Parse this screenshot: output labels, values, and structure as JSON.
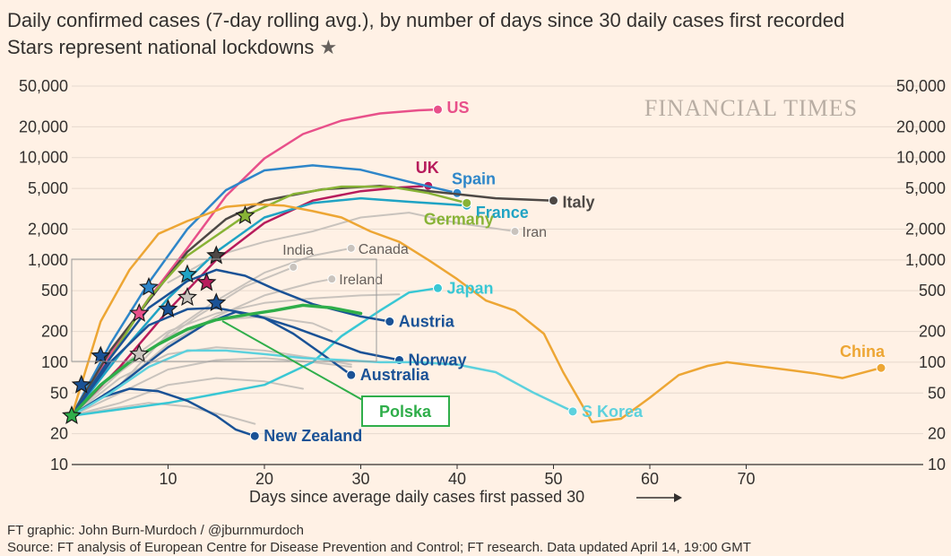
{
  "title": "Daily confirmed cases (7-day rolling avg.), by number of days since 30 daily cases first recorded",
  "subtitle": "Stars represent national lockdowns",
  "watermark": "FINANCIAL TIMES",
  "footer_credit": "FT graphic: John Burn-Murdoch / @jburnmurdoch",
  "footer_source": "Source: FT analysis of European Centre for Disease Prevention and Control; FT research. Data updated April 14, 19:00 GMT",
  "annotation_box": "Polska",
  "chart_data": {
    "type": "line",
    "xlabel": "Days since average daily cases first passed 30",
    "ylabel": "",
    "yscale": "log",
    "xlim": [
      0,
      85
    ],
    "ylim": [
      10,
      50000
    ],
    "x_ticks": [
      10,
      20,
      30,
      40,
      50,
      60,
      70
    ],
    "y_ticks": [
      10,
      20,
      50,
      100,
      200,
      500,
      1000,
      2000,
      5000,
      10000,
      20000,
      50000
    ],
    "y_tick_labels": [
      "10",
      "20",
      "50",
      "100",
      "200",
      "500",
      "1,000",
      "2,000",
      "5,000",
      "10,000",
      "20,000",
      "50,000"
    ],
    "grid": true,
    "colors": {
      "background": "#fff1e5",
      "grid": "#e6d9ce",
      "US": "#e8508a",
      "UK": "#b71c5c",
      "Spain": "#2e86c9",
      "France": "#1fa3c4",
      "Italy": "#4d4845",
      "Germany": "#88b336",
      "Japan": "#39c7d4",
      "Austria": "#1a5296",
      "Norway": "#1a5296",
      "Australia": "#1a5296",
      "New Zealand": "#1a5296",
      "S Korea": "#5dd1dd",
      "China": "#eda634",
      "Polska": "#2fae4a",
      "other": "#c9c3bd",
      "star": "#1a5296"
    },
    "series": [
      {
        "name": "US",
        "x": [
          0,
          4,
          8,
          12,
          16,
          20,
          24,
          28,
          32,
          36,
          38
        ],
        "y": [
          30,
          120,
          420,
          1300,
          4200,
          9800,
          17000,
          23000,
          27000,
          29000,
          29500
        ]
      },
      {
        "name": "UK",
        "x": [
          0,
          5,
          10,
          15,
          20,
          25,
          30,
          34,
          37
        ],
        "y": [
          30,
          90,
          320,
          1000,
          2300,
          3800,
          4700,
          5100,
          5300
        ]
      },
      {
        "name": "Spain",
        "x": [
          0,
          4,
          8,
          12,
          16,
          20,
          25,
          30,
          35,
          40
        ],
        "y": [
          30,
          150,
          600,
          2000,
          4800,
          7500,
          8400,
          7600,
          5800,
          4500
        ]
      },
      {
        "name": "France",
        "x": [
          0,
          5,
          10,
          15,
          20,
          25,
          30,
          35,
          41
        ],
        "y": [
          30,
          120,
          420,
          1200,
          2600,
          3600,
          4000,
          3700,
          3400
        ]
      },
      {
        "name": "Italy",
        "x": [
          0,
          4,
          8,
          12,
          16,
          20,
          26,
          32,
          38,
          44,
          50
        ],
        "y": [
          30,
          130,
          400,
          1200,
          2500,
          3800,
          4900,
          5300,
          4600,
          4000,
          3800
        ]
      },
      {
        "name": "Germany",
        "x": [
          0,
          4,
          8,
          12,
          18,
          23,
          28,
          33,
          37,
          41
        ],
        "y": [
          30,
          110,
          420,
          1100,
          2700,
          4400,
          5200,
          5200,
          4500,
          3600
        ]
      },
      {
        "name": "Iran",
        "x": [
          10,
          15,
          20,
          25,
          30,
          35,
          40,
          46
        ],
        "y": [
          600,
          1100,
          1500,
          1900,
          2600,
          2900,
          2300,
          1900
        ]
      },
      {
        "name": "Canada",
        "x": [
          5,
          10,
          15,
          20,
          25,
          29
        ],
        "y": [
          60,
          190,
          400,
          750,
          1100,
          1300
        ]
      },
      {
        "name": "India",
        "x": [
          8,
          13,
          18,
          23
        ],
        "y": [
          130,
          280,
          550,
          850
        ]
      },
      {
        "name": "Ireland",
        "x": [
          5,
          10,
          15,
          20,
          25,
          27
        ],
        "y": [
          60,
          150,
          280,
          450,
          600,
          650
        ]
      },
      {
        "name": "Japan",
        "x": [
          0,
          10,
          20,
          25,
          28,
          32,
          35,
          38
        ],
        "y": [
          30,
          40,
          60,
          100,
          180,
          320,
          480,
          530
        ]
      },
      {
        "name": "Austria",
        "x": [
          0,
          4,
          8,
          12,
          15,
          18,
          21,
          25,
          30,
          33
        ],
        "y": [
          30,
          110,
          340,
          620,
          800,
          700,
          520,
          370,
          280,
          250
        ]
      },
      {
        "name": "Norway",
        "x": [
          0,
          4,
          8,
          12,
          15,
          19,
          23,
          27,
          30,
          34
        ],
        "y": [
          30,
          100,
          230,
          330,
          340,
          290,
          220,
          160,
          125,
          105
        ]
      },
      {
        "name": "Australia",
        "x": [
          0,
          5,
          10,
          14,
          17,
          20,
          23,
          26,
          29
        ],
        "y": [
          30,
          60,
          140,
          240,
          310,
          270,
          190,
          120,
          75
        ]
      },
      {
        "name": "New Zealand",
        "x": [
          0,
          3,
          6,
          9,
          12,
          15,
          17,
          19
        ],
        "y": [
          30,
          45,
          55,
          52,
          42,
          30,
          22,
          19
        ]
      },
      {
        "name": "S Korea",
        "x": [
          0,
          4,
          8,
          12,
          16,
          20,
          24,
          28,
          32,
          36,
          40,
          44,
          48,
          52
        ],
        "y": [
          30,
          50,
          90,
          130,
          130,
          120,
          110,
          105,
          100,
          100,
          95,
          80,
          50,
          33
        ]
      },
      {
        "name": "China",
        "x": [
          0,
          3,
          6,
          9,
          12,
          14,
          16,
          19,
          22,
          25,
          28,
          31,
          34,
          37,
          40,
          43,
          46,
          49,
          51,
          54,
          57,
          60,
          63,
          66,
          68,
          71,
          74,
          77,
          80,
          84
        ],
        "y": [
          30,
          250,
          800,
          1800,
          2400,
          2800,
          3300,
          3500,
          3400,
          3000,
          2600,
          1900,
          1500,
          1000,
          650,
          400,
          320,
          190,
          80,
          26,
          28,
          45,
          75,
          92,
          100,
          92,
          85,
          78,
          70,
          88
        ]
      },
      {
        "name": "Polska",
        "x": [
          0,
          3,
          6,
          9,
          12,
          15,
          18,
          21,
          24,
          27,
          30
        ],
        "y": [
          30,
          60,
          100,
          150,
          210,
          260,
          290,
          320,
          360,
          340,
          300
        ]
      },
      {
        "name": "",
        "x": [
          0,
          5,
          10,
          15,
          20,
          25,
          30,
          34
        ],
        "y": [
          30,
          90,
          200,
          300,
          380,
          420,
          450,
          460
        ]
      },
      {
        "name": "",
        "x": [
          0,
          5,
          10,
          15,
          20,
          25,
          29
        ],
        "y": [
          30,
          70,
          120,
          140,
          130,
          110,
          95
        ]
      },
      {
        "name": "",
        "x": [
          0,
          5,
          10,
          15,
          20,
          25,
          29
        ],
        "y": [
          30,
          50,
          85,
          105,
          110,
          100,
          90
        ]
      },
      {
        "name": "",
        "x": [
          0,
          5,
          10,
          15,
          20,
          24
        ],
        "y": [
          30,
          40,
          60,
          70,
          65,
          55
        ]
      },
      {
        "name": "",
        "x": [
          0,
          4,
          8,
          12,
          16,
          19
        ],
        "y": [
          30,
          35,
          40,
          37,
          30,
          25
        ]
      },
      {
        "name": "",
        "x": [
          0,
          5,
          10,
          15,
          20,
          25,
          27
        ],
        "y": [
          30,
          80,
          180,
          260,
          280,
          240,
          200
        ]
      }
    ],
    "lockdowns": [
      {
        "series": "US",
        "x": 7,
        "y": 300
      },
      {
        "series": "Germany",
        "x": 18,
        "y": 2700
      },
      {
        "series": "Italy",
        "x": 15,
        "y": 1100
      },
      {
        "series": "France",
        "x": 12,
        "y": 720
      },
      {
        "series": "Spain",
        "x": 8,
        "y": 540
      },
      {
        "series": "UK",
        "x": 14,
        "y": 600
      },
      {
        "series": "Ireland",
        "x": 12,
        "y": 430
      },
      {
        "series": "Austria",
        "x": 10,
        "y": 330
      },
      {
        "series": "Norway",
        "x": 15,
        "y": 380
      },
      {
        "series": "Australia",
        "x": 3,
        "y": 115
      },
      {
        "series": "Canada",
        "x": 7,
        "y": 120
      },
      {
        "series": "New Zealand",
        "x": 1,
        "y": 60
      },
      {
        "series": "Polska",
        "x": 0,
        "y": 30
      }
    ],
    "labels": [
      {
        "text": "US",
        "series": "US",
        "style": "bold"
      },
      {
        "text": "UK",
        "series": "UK",
        "style": "bold"
      },
      {
        "text": "Spain",
        "series": "Spain",
        "style": "bold"
      },
      {
        "text": "France",
        "series": "France",
        "style": "bold"
      },
      {
        "text": "Italy",
        "series": "Italy",
        "style": "bold"
      },
      {
        "text": "Germany",
        "series": "Germany",
        "style": "bold"
      },
      {
        "text": "Iran",
        "series": "Iran",
        "style": "plain"
      },
      {
        "text": "Canada",
        "series": "Canada",
        "style": "plain"
      },
      {
        "text": "India",
        "series": "India",
        "style": "plain"
      },
      {
        "text": "Ireland",
        "series": "Ireland",
        "style": "plain"
      },
      {
        "text": "Japan",
        "series": "Japan",
        "style": "bold"
      },
      {
        "text": "Austria",
        "series": "Austria",
        "style": "bold"
      },
      {
        "text": "Norway",
        "series": "Norway",
        "style": "bold"
      },
      {
        "text": "Australia",
        "series": "Australia",
        "style": "bold"
      },
      {
        "text": "New Zealand",
        "series": "New Zealand",
        "style": "bold"
      },
      {
        "text": "S Korea",
        "series": "S Korea",
        "style": "bold"
      },
      {
        "text": "China",
        "series": "China",
        "style": "bold"
      }
    ]
  }
}
